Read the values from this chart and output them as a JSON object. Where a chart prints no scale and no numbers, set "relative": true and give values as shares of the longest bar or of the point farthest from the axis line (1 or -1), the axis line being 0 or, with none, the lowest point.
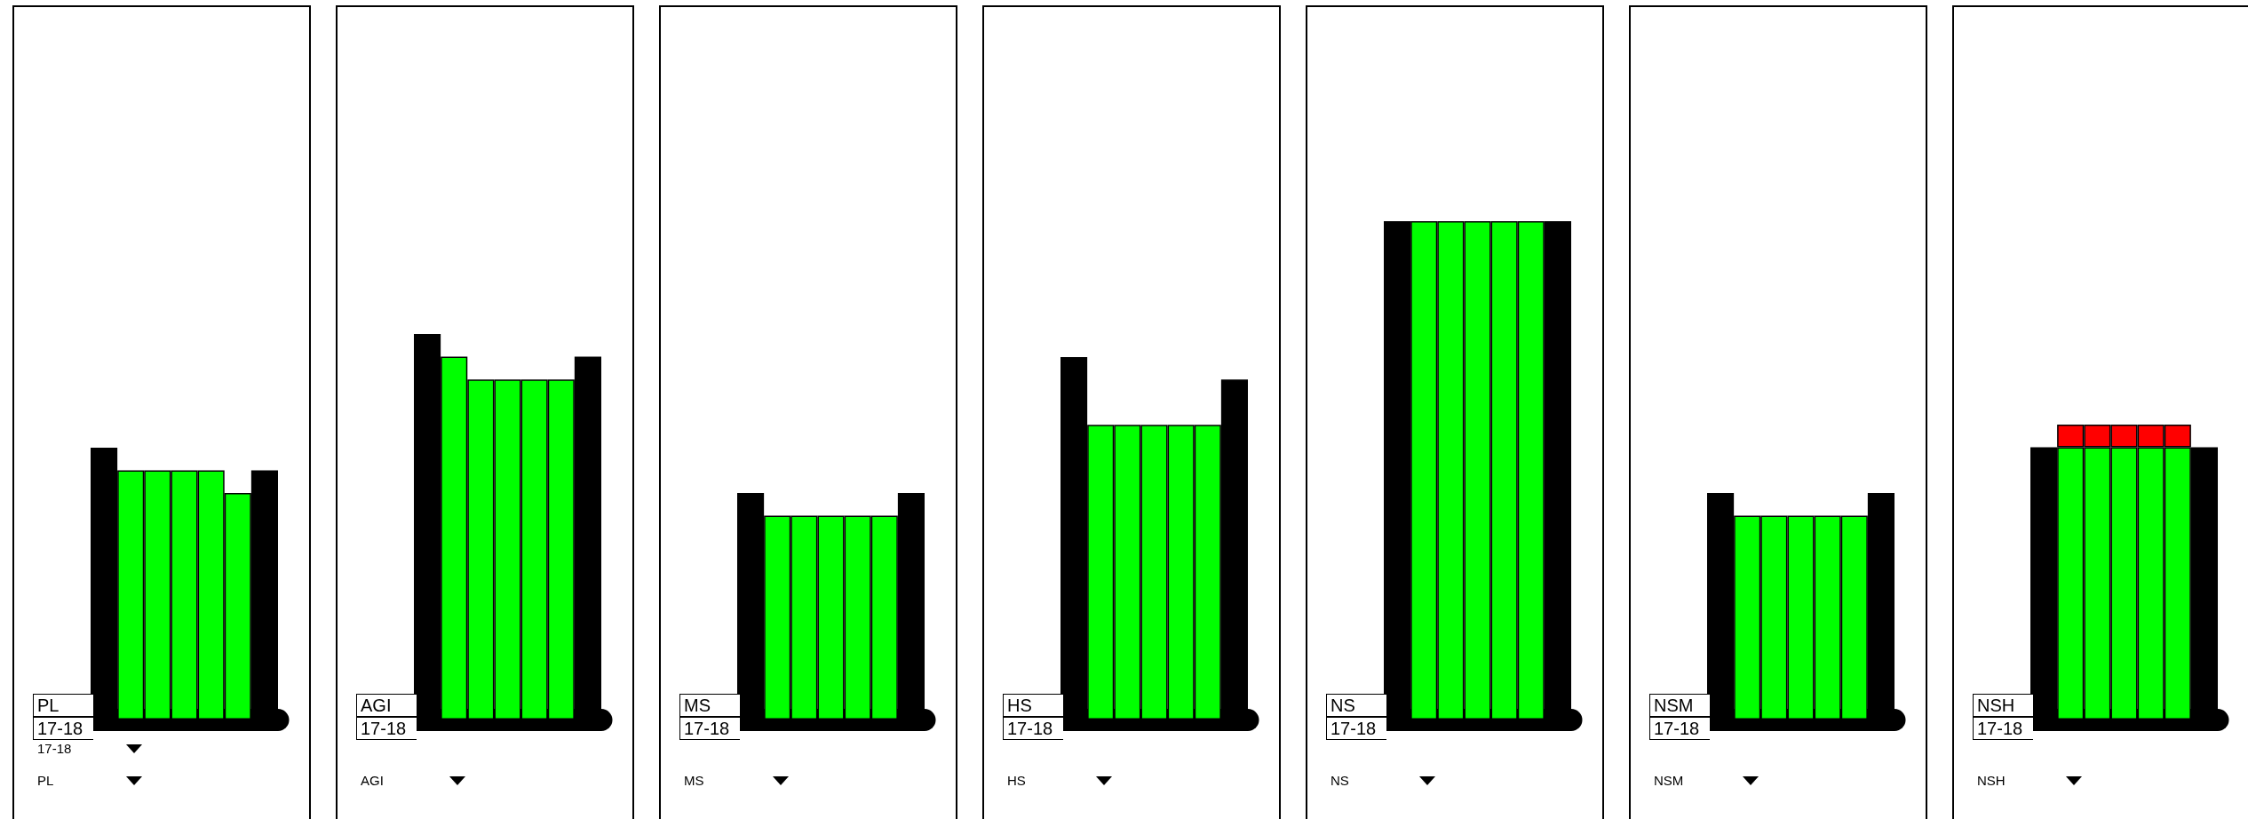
{
  "chart_data": [
    {
      "type": "bar",
      "title": "PL",
      "subtitle": "17-18",
      "categories": [
        null,
        null,
        null,
        null,
        null,
        null,
        null
      ],
      "relative": true,
      "annotations": [
        "17-18",
        "PL"
      ],
      "series": [
        {
          "colors": [
            "#000000",
            "#00ff00",
            "#00ff00",
            "#00ff00",
            "#00ff00",
            "#00ff00",
            "#000000"
          ],
          "values": [
            1,
            0.917,
            0.917,
            0.917,
            0.917,
            0.833,
            0.917
          ]
        }
      ]
    },
    {
      "type": "bar",
      "title": "AGI",
      "subtitle": "17-18",
      "categories": [
        null,
        null,
        null,
        null,
        null,
        null,
        null
      ],
      "relative": true,
      "annotations": [
        "AGI"
      ],
      "series": [
        {
          "colors": [
            "#000000",
            "#00ff00",
            "#00ff00",
            "#00ff00",
            "#00ff00",
            "#00ff00",
            "#000000"
          ],
          "values": [
            1,
            0.941,
            0.882,
            0.882,
            0.882,
            0.882,
            0.941
          ]
        }
      ]
    },
    {
      "type": "bar",
      "title": "MS",
      "subtitle": "17-18",
      "categories": [
        null,
        null,
        null,
        null,
        null,
        null,
        null
      ],
      "relative": true,
      "annotations": [
        "MS"
      ],
      "series": [
        {
          "colors": [
            "#000000",
            "#00ff00",
            "#00ff00",
            "#00ff00",
            "#00ff00",
            "#00ff00",
            "#000000"
          ],
          "values": [
            1,
            0.9,
            0.9,
            0.9,
            0.9,
            0.9,
            1
          ]
        }
      ]
    },
    {
      "type": "bar",
      "title": "HS",
      "subtitle": "17-18",
      "categories": [
        null,
        null,
        null,
        null,
        null,
        null,
        null
      ],
      "relative": true,
      "annotations": [
        "HS"
      ],
      "series": [
        {
          "colors": [
            "#000000",
            "#00ff00",
            "#00ff00",
            "#00ff00",
            "#00ff00",
            "#00ff00",
            "#000000"
          ],
          "values": [
            1,
            0.813,
            0.813,
            0.813,
            0.813,
            0.813,
            0.938
          ]
        }
      ]
    },
    {
      "type": "bar",
      "title": "NS",
      "subtitle": "17-18",
      "categories": [
        null,
        null,
        null,
        null,
        null,
        null,
        null
      ],
      "relative": true,
      "annotations": [
        "NS"
      ],
      "series": [
        {
          "colors": [
            "#000000",
            "#00ff00",
            "#00ff00",
            "#00ff00",
            "#00ff00",
            "#00ff00",
            "#000000"
          ],
          "values": [
            1,
            1,
            1,
            1,
            1,
            1,
            1
          ]
        }
      ]
    },
    {
      "type": "bar",
      "title": "NSM",
      "subtitle": "17-18",
      "categories": [
        null,
        null,
        null,
        null,
        null,
        null,
        null
      ],
      "relative": true,
      "annotations": [
        "NSM"
      ],
      "series": [
        {
          "colors": [
            "#000000",
            "#00ff00",
            "#00ff00",
            "#00ff00",
            "#00ff00",
            "#00ff00",
            "#000000"
          ],
          "values": [
            1,
            0.9,
            0.9,
            0.9,
            0.9,
            0.9,
            1
          ]
        }
      ]
    },
    {
      "type": "bar",
      "title": "NSH",
      "subtitle": "17-18",
      "categories": [
        null,
        null,
        null,
        null,
        null,
        null,
        null
      ],
      "relative": true,
      "stacked": true,
      "annotations": [
        "NSH"
      ],
      "series": [
        {
          "colors": [
            "#000000",
            "#00ff00",
            "#00ff00",
            "#00ff00",
            "#00ff00",
            "#00ff00",
            "#000000"
          ],
          "values": [
            0.923,
            0.923,
            0.923,
            0.923,
            0.923,
            0.923,
            0.923
          ]
        },
        {
          "color": "#ff0000",
          "values": [
            null,
            0.077,
            0.077,
            0.077,
            0.077,
            0.077,
            null
          ]
        }
      ]
    }
  ]
}
